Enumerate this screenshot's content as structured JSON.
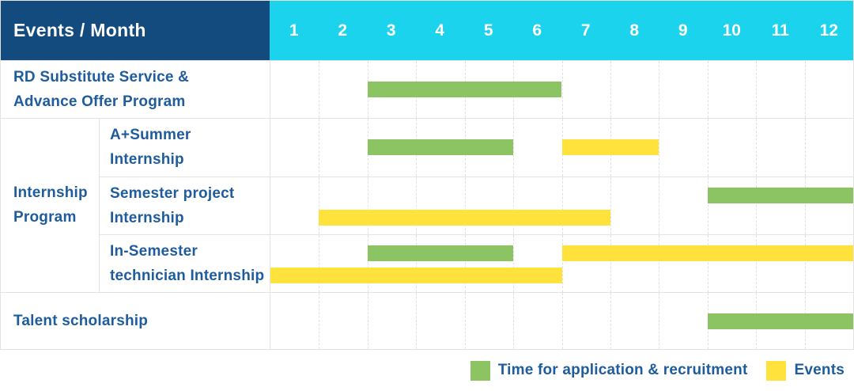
{
  "header": {
    "row_label": "Events / Month",
    "months": [
      "1",
      "2",
      "3",
      "4",
      "5",
      "6",
      "7",
      "8",
      "9",
      "10",
      "11",
      "12"
    ]
  },
  "group_label_lines": [
    "Internship",
    "Program"
  ],
  "rows": [
    {
      "label_lines": [
        "RD Substitute Service &",
        "Advance Offer Program"
      ],
      "group": null,
      "bars": [
        {
          "color": "green",
          "start": 3,
          "end": 7,
          "lane": "center"
        }
      ]
    },
    {
      "label_lines": [
        "A+Summer",
        "Internship"
      ],
      "group": "Internship Program",
      "bars": [
        {
          "color": "green",
          "start": 3,
          "end": 6,
          "lane": "center"
        },
        {
          "color": "yellow",
          "start": 7,
          "end": 9,
          "lane": "center"
        }
      ]
    },
    {
      "label_lines": [
        "Semester project",
        "Internship"
      ],
      "group": "Internship Program",
      "bars": [
        {
          "color": "green",
          "start": 10,
          "end": 13,
          "lane": "top"
        },
        {
          "color": "yellow",
          "start": 2,
          "end": 8,
          "lane": "bottom"
        }
      ]
    },
    {
      "label_lines": [
        "In-Semester",
        "technician Internship"
      ],
      "group": "Internship Program",
      "bars": [
        {
          "color": "green",
          "start": 3,
          "end": 6,
          "lane": "top"
        },
        {
          "color": "yellow",
          "start": 7,
          "end": 13,
          "lane": "top"
        },
        {
          "color": "yellow",
          "start": 1,
          "end": 7,
          "lane": "bottom"
        }
      ]
    },
    {
      "label_lines": [
        "Talent scholarship"
      ],
      "group": null,
      "bars": [
        {
          "color": "green",
          "start": 10,
          "end": 13,
          "lane": "center"
        }
      ]
    }
  ],
  "legend": [
    {
      "color": "green",
      "label": "Time for application & recruitment"
    },
    {
      "color": "yellow",
      "label": "Events"
    }
  ],
  "colors": {
    "header_bg": "#134b7e",
    "months_bg": "#1cd3ee",
    "text_blue": "#1e5c9e",
    "green": "#8cc363",
    "yellow": "#ffe33c",
    "grid": "#e3e3e3"
  },
  "chart_data": {
    "type": "bar",
    "subtype": "gantt-schedule",
    "title": "Events / Month",
    "x_axis_label": "Month",
    "x_ticks": [
      1,
      2,
      3,
      4,
      5,
      6,
      7,
      8,
      9,
      10,
      11,
      12
    ],
    "x_range": [
      1,
      13
    ],
    "legend_position": "bottom-right",
    "legend": {
      "green": "Time for application & recruitment",
      "yellow": "Events"
    },
    "rows": [
      {
        "label": "RD Substitute Service & Advance Offer Program",
        "group": null,
        "segments": [
          {
            "kind": "Time for application & recruitment",
            "color": "green",
            "start_month": 3,
            "end_month": 6
          }
        ]
      },
      {
        "label": "A+Summer Internship",
        "group": "Internship Program",
        "segments": [
          {
            "kind": "Time for application & recruitment",
            "color": "green",
            "start_month": 3,
            "end_month": 5
          },
          {
            "kind": "Events",
            "color": "yellow",
            "start_month": 7,
            "end_month": 8
          }
        ]
      },
      {
        "label": "Semester project Internship",
        "group": "Internship Program",
        "segments": [
          {
            "kind": "Time for application & recruitment",
            "color": "green",
            "start_month": 10,
            "end_month": 12
          },
          {
            "kind": "Events",
            "color": "yellow",
            "start_month": 2,
            "end_month": 7
          }
        ]
      },
      {
        "label": "In-Semester technician Internship",
        "group": "Internship Program",
        "segments": [
          {
            "kind": "Time for application & recruitment",
            "color": "green",
            "start_month": 3,
            "end_month": 5
          },
          {
            "kind": "Events",
            "color": "yellow",
            "start_month": 7,
            "end_month": 12
          },
          {
            "kind": "Events",
            "color": "yellow",
            "start_month": 1,
            "end_month": 6
          }
        ]
      },
      {
        "label": "Talent scholarship",
        "group": null,
        "segments": [
          {
            "kind": "Time for application & recruitment",
            "color": "green",
            "start_month": 10,
            "end_month": 12
          }
        ]
      }
    ]
  }
}
